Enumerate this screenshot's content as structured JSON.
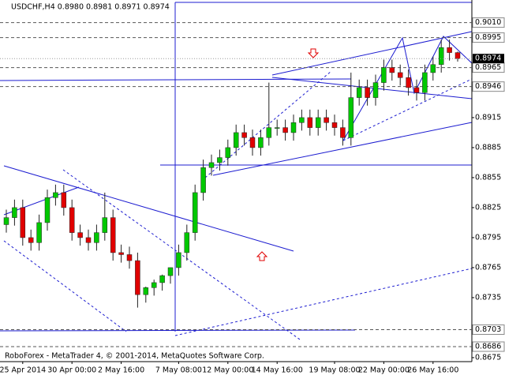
{
  "chart_data": {
    "type": "candlestick",
    "title": "USDCHF,H4  0.8980 0.8981 0.8971 0.8974",
    "footer": "RoboForex - MetaTrader 4, © 2001-2014, MetaQuotes Software Corp.",
    "categories": [
      null,
      null,
      "25 Apr 2014",
      null,
      null,
      null,
      null,
      null,
      "30 Apr 00:00",
      null,
      null,
      null,
      null,
      null,
      "2 May 16:00",
      null,
      null,
      null,
      null,
      null,
      null,
      "7 May 08:00",
      null,
      null,
      null,
      null,
      null,
      "12 May 00:00",
      null,
      null,
      null,
      null,
      null,
      "14 May 16:00",
      null,
      null,
      null,
      null,
      null,
      null,
      "19 May 08:00",
      null,
      null,
      null,
      null,
      null,
      "22 May 00:00",
      null,
      null,
      null,
      null,
      null,
      "26 May 16:00",
      null,
      null,
      null
    ],
    "open": [
      0.8808,
      0.8815,
      0.8825,
      0.8795,
      0.879,
      0.881,
      0.8835,
      0.884,
      0.8825,
      0.88,
      0.8795,
      0.879,
      0.88,
      0.8815,
      0.878,
      0.8778,
      0.8772,
      0.8738,
      0.8745,
      0.875,
      0.8757,
      0.8765,
      0.878,
      0.88,
      0.884,
      0.8865,
      0.887,
      0.8875,
      0.8885,
      0.89,
      0.8895,
      0.8885,
      0.8895,
      0.8905,
      0.8905,
      0.89,
      0.891,
      0.8915,
      0.8905,
      0.8915,
      0.891,
      0.8905,
      0.8895,
      0.8935,
      0.8945,
      0.8935,
      0.895,
      0.8965,
      0.896,
      0.8955,
      0.8945,
      0.894,
      0.896,
      0.8968,
      0.8985,
      0.898
    ],
    "high": [
      0.8823,
      0.8833,
      0.8833,
      0.8803,
      0.8818,
      0.8843,
      0.8848,
      0.8848,
      0.8833,
      0.8808,
      0.8803,
      0.8808,
      0.884,
      0.8823,
      0.8788,
      0.8786,
      0.878,
      0.8746,
      0.8753,
      0.8758,
      0.8765,
      0.8788,
      0.8808,
      0.8848,
      0.8873,
      0.8878,
      0.8883,
      0.8893,
      0.8908,
      0.8908,
      0.8903,
      0.8903,
      0.895,
      0.8913,
      0.8913,
      0.8918,
      0.8923,
      0.8923,
      0.8923,
      0.8923,
      0.8918,
      0.8913,
      0.896,
      0.8953,
      0.8953,
      0.8958,
      0.8973,
      0.8973,
      0.8968,
      0.8963,
      0.8953,
      0.8968,
      0.8976,
      0.8993,
      0.8993,
      0.8981
    ],
    "low": [
      0.88,
      0.8807,
      0.8787,
      0.8782,
      0.8782,
      0.8802,
      0.8827,
      0.8817,
      0.8792,
      0.8787,
      0.8782,
      0.8782,
      0.8792,
      0.8772,
      0.877,
      0.8764,
      0.8725,
      0.873,
      0.8737,
      0.8742,
      0.8749,
      0.8757,
      0.8772,
      0.8792,
      0.8832,
      0.8857,
      0.8862,
      0.8867,
      0.8877,
      0.8887,
      0.8877,
      0.8877,
      0.8887,
      0.8897,
      0.8892,
      0.8892,
      0.8902,
      0.8897,
      0.8897,
      0.8902,
      0.8897,
      0.8887,
      0.8887,
      0.8927,
      0.8927,
      0.8927,
      0.8942,
      0.8952,
      0.8947,
      0.8937,
      0.8932,
      0.8932,
      0.8952,
      0.896,
      0.8972,
      0.8971
    ],
    "close": [
      0.8815,
      0.8825,
      0.8795,
      0.879,
      0.881,
      0.8835,
      0.884,
      0.8825,
      0.88,
      0.8795,
      0.879,
      0.88,
      0.8815,
      0.878,
      0.8778,
      0.8772,
      0.8738,
      0.8745,
      0.875,
      0.8757,
      0.8765,
      0.878,
      0.88,
      0.884,
      0.8865,
      0.887,
      0.8875,
      0.8885,
      0.89,
      0.8895,
      0.8885,
      0.8895,
      0.8905,
      0.8905,
      0.89,
      0.891,
      0.8915,
      0.8905,
      0.8915,
      0.891,
      0.8905,
      0.8895,
      0.8935,
      0.8945,
      0.8935,
      0.895,
      0.8965,
      0.896,
      0.8955,
      0.8945,
      0.894,
      0.896,
      0.8968,
      0.8985,
      0.898,
      0.8974
    ],
    "up_color": "#00c800",
    "down_color": "#e00000",
    "ylim": [
      0.8671,
      0.9031
    ],
    "yticks": [
      0.8915,
      0.8885,
      0.8855,
      0.8825,
      0.8795,
      0.8765,
      0.8735,
      0.8675
    ],
    "levels": [
      {
        "value": 0.901,
        "label": "0.9010"
      },
      {
        "value": 0.8995,
        "label": "0.8995"
      },
      {
        "value": 0.8965,
        "label": "0.8965"
      },
      {
        "value": 0.8946,
        "label": "0.8946"
      },
      {
        "value": 0.8703,
        "label": "0.8703"
      },
      {
        "value": 0.8686,
        "label": "0.8686"
      }
    ],
    "grid": false
  }
}
